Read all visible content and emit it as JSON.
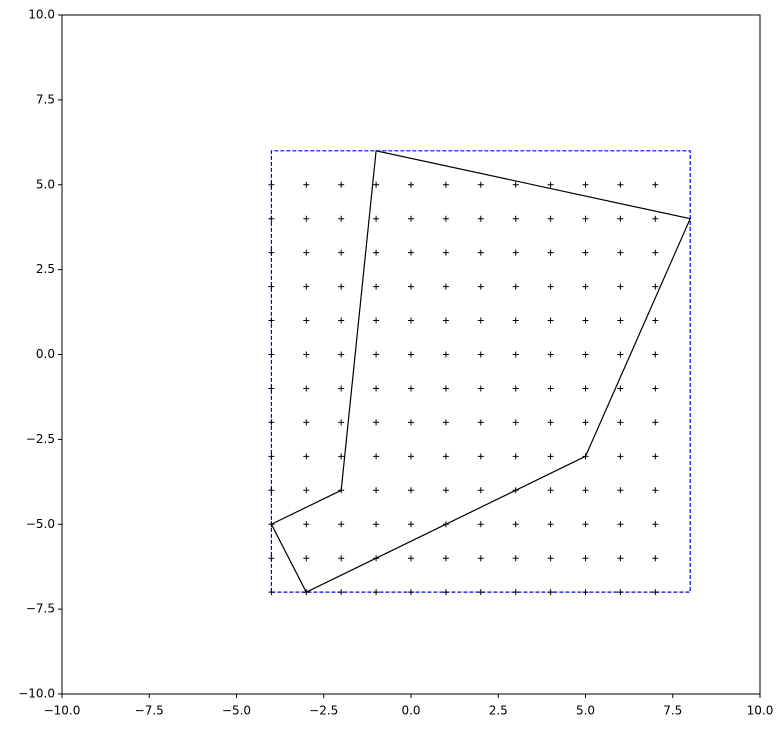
{
  "chart_data": {
    "type": "scatter",
    "xlim": [
      -10,
      10
    ],
    "ylim": [
      -10,
      10
    ],
    "xticks": [
      {
        "value": -10,
        "label": "−10.0"
      },
      {
        "value": -7.5,
        "label": "−7.5"
      },
      {
        "value": -5,
        "label": "−5.0"
      },
      {
        "value": -2.5,
        "label": "−2.5"
      },
      {
        "value": 0,
        "label": "0.0"
      },
      {
        "value": 2.5,
        "label": "2.5"
      },
      {
        "value": 5,
        "label": "5.0"
      },
      {
        "value": 7.5,
        "label": "7.5"
      },
      {
        "value": 10,
        "label": "10.0"
      }
    ],
    "yticks": [
      {
        "value": -10,
        "label": "−10.0"
      },
      {
        "value": -7.5,
        "label": "−7.5"
      },
      {
        "value": -5,
        "label": "−5.0"
      },
      {
        "value": -2.5,
        "label": "−2.5"
      },
      {
        "value": 0,
        "label": "0.0"
      },
      {
        "value": 2.5,
        "label": "2.5"
      },
      {
        "value": 5,
        "label": "5.0"
      },
      {
        "value": 7.5,
        "label": "7.5"
      },
      {
        "value": 10,
        "label": "10.0"
      }
    ],
    "points": {
      "color": "#000000",
      "marker": "+",
      "x": [
        -4,
        -3,
        -2,
        -1,
        0,
        1,
        2,
        3,
        4,
        5,
        6,
        7,
        -4,
        -3,
        -2,
        -1,
        0,
        1,
        2,
        3,
        4,
        5,
        6,
        7,
        -4,
        -3,
        -2,
        -1,
        0,
        1,
        2,
        3,
        4,
        5,
        6,
        7,
        -4,
        -3,
        -2,
        -1,
        0,
        1,
        2,
        3,
        4,
        5,
        6,
        7,
        -4,
        -3,
        -2,
        -1,
        0,
        1,
        2,
        3,
        4,
        5,
        6,
        7,
        -4,
        -3,
        -2,
        -1,
        0,
        1,
        2,
        3,
        4,
        5,
        6,
        7,
        -4,
        -3,
        -2,
        -1,
        0,
        1,
        2,
        3,
        4,
        5,
        6,
        7,
        -4,
        -3,
        -2,
        -1,
        0,
        1,
        2,
        3,
        4,
        5,
        6,
        7,
        -4,
        -3,
        -2,
        -1,
        0,
        1,
        2,
        3,
        4,
        5,
        6,
        7,
        -4,
        -3,
        -2,
        -1,
        0,
        1,
        2,
        3,
        4,
        5,
        6,
        7,
        -4,
        -3,
        -2,
        -1,
        0,
        1,
        2,
        3,
        4,
        5,
        6,
        7,
        -4,
        -3,
        -2,
        -1,
        0,
        1,
        2,
        3,
        4,
        5,
        6,
        7,
        -4,
        -3,
        -2,
        -1,
        0,
        1,
        2,
        3,
        4,
        5,
        6,
        7
      ],
      "y": [
        -7,
        -7,
        -7,
        -7,
        -7,
        -7,
        -7,
        -7,
        -7,
        -7,
        -7,
        -7,
        -6,
        -6,
        -6,
        -6,
        -6,
        -6,
        -6,
        -6,
        -6,
        -6,
        -6,
        -6,
        -5,
        -5,
        -5,
        -5,
        -5,
        -5,
        -5,
        -5,
        -5,
        -5,
        -5,
        -5,
        -4,
        -4,
        -4,
        -4,
        -4,
        -4,
        -4,
        -4,
        -4,
        -4,
        -4,
        -4,
        -3,
        -3,
        -3,
        -3,
        -3,
        -3,
        -3,
        -3,
        -3,
        -3,
        -3,
        -3,
        -2,
        -2,
        -2,
        -2,
        -2,
        -2,
        -2,
        -2,
        -2,
        -2,
        -2,
        -2,
        -1,
        -1,
        -1,
        -1,
        -1,
        -1,
        -1,
        -1,
        -1,
        -1,
        -1,
        -1,
        0,
        0,
        0,
        0,
        0,
        0,
        0,
        0,
        0,
        0,
        0,
        0,
        1,
        1,
        1,
        1,
        1,
        1,
        1,
        1,
        1,
        1,
        1,
        1,
        2,
        2,
        2,
        2,
        2,
        2,
        2,
        2,
        2,
        2,
        2,
        2,
        3,
        3,
        3,
        3,
        3,
        3,
        3,
        3,
        3,
        3,
        3,
        3,
        4,
        4,
        4,
        4,
        4,
        4,
        4,
        4,
        4,
        4,
        4,
        4,
        5,
        5,
        5,
        5,
        5,
        5,
        5,
        5,
        5,
        5,
        5,
        5
      ]
    },
    "polygon": {
      "color": "#000000",
      "x": [
        -1,
        8,
        5,
        -3,
        -4,
        -2
      ],
      "y": [
        6,
        4,
        -3,
        -7,
        -5,
        -4
      ]
    },
    "rectangle": {
      "color": "#0000ff",
      "linestyle": "dashed",
      "x": [
        -4,
        8
      ],
      "y": [
        -7,
        6
      ]
    }
  }
}
